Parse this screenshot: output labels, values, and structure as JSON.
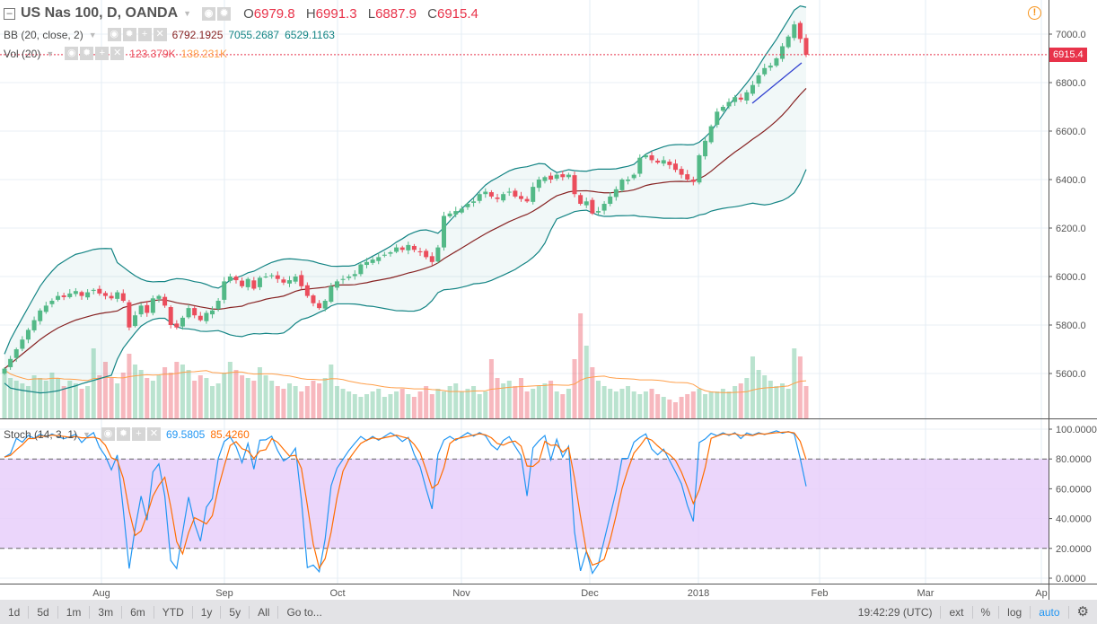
{
  "header": {
    "symbol": "US Nas 100, D, OANDA",
    "open_label": "O",
    "open": "6979.8",
    "high_label": "H",
    "high": "6991.3",
    "low_label": "L",
    "low": "6887.9",
    "close_label": "C",
    "close": "6915.4"
  },
  "bb": {
    "label": "BB (20, close, 2)",
    "basis": "6792.1925",
    "upper": "7055.2687",
    "lower": "6529.1163"
  },
  "vol": {
    "label": "Vol (20)",
    "value": "123.379K",
    "ma": "138.231K"
  },
  "stoch": {
    "label": "Stoch (14, 3, 1)",
    "k": "69.5805",
    "d": "85.4260"
  },
  "last_price": "6915.4",
  "colors": {
    "up": "#53b987",
    "down": "#eb4d5c",
    "bb": "#138484",
    "basis": "#872323",
    "k": "#2196f3",
    "d": "#ff6d00",
    "stoch_fill": "#e8cffa"
  },
  "chart_data": {
    "type": "candlestick",
    "price_ticks": [
      "5600.0",
      "5800.0",
      "6000.0",
      "6200.0",
      "6400.0",
      "6600.0",
      "6800.0",
      "7000.0"
    ],
    "price_tick_values": [
      5600,
      5800,
      6000,
      6200,
      6400,
      6600,
      6800,
      7000
    ],
    "stoch_ticks": [
      "0.0000",
      "20.0000",
      "40.0000",
      "60.0000",
      "80.0000",
      "100.0000"
    ],
    "time_labels": [
      "Aug",
      "Sep",
      "Oct",
      "Nov",
      "Dec",
      "2018",
      "Feb",
      "Mar",
      "Ap"
    ],
    "closes": [
      5620,
      5660,
      5700,
      5740,
      5780,
      5820,
      5860,
      5880,
      5900,
      5920,
      5915,
      5930,
      5940,
      5920,
      5935,
      5945,
      5930,
      5920,
      5910,
      5935,
      5900,
      5790,
      5840,
      5880,
      5850,
      5910,
      5920,
      5880,
      5800,
      5790,
      5830,
      5870,
      5840,
      5820,
      5850,
      5860,
      5900,
      5980,
      6000,
      5985,
      5960,
      5990,
      5950,
      5995,
      6000,
      6005,
      5990,
      5975,
      5985,
      6000,
      5960,
      5920,
      5890,
      5870,
      5900,
      5960,
      5980,
      5990,
      6000,
      6010,
      6050,
      6060,
      6070,
      6080,
      6090,
      6100,
      6120,
      6110,
      6130,
      6110,
      6100,
      6080,
      6060,
      6120,
      6250,
      6260,
      6270,
      6280,
      6300,
      6310,
      6340,
      6350,
      6330,
      6320,
      6340,
      6350,
      6330,
      6320,
      6310,
      6370,
      6400,
      6410,
      6400,
      6420,
      6410,
      6420,
      6340,
      6300,
      6310,
      6260,
      6270,
      6300,
      6330,
      6360,
      6400,
      6400,
      6420,
      6490,
      6500,
      6480,
      6470,
      6480,
      6460,
      6440,
      6420,
      6400,
      6390,
      6500,
      6560,
      6620,
      6680,
      6700,
      6720,
      6740,
      6730,
      6760,
      6790,
      6830,
      6860,
      6870,
      6900,
      6950,
      6990,
      7040,
      6980,
      6915
    ],
    "volumes_k": [
      180,
      150,
      140,
      130,
      120,
      160,
      150,
      140,
      170,
      150,
      120,
      140,
      130,
      110,
      120,
      260,
      160,
      210,
      150,
      130,
      170,
      240,
      200,
      180,
      150,
      140,
      160,
      190,
      170,
      210,
      200,
      180,
      140,
      160,
      150,
      120,
      130,
      170,
      210,
      180,
      160,
      150,
      140,
      190,
      160,
      140,
      120,
      110,
      130,
      120,
      100,
      120,
      140,
      130,
      150,
      200,
      120,
      110,
      100,
      90,
      80,
      90,
      100,
      110,
      80,
      90,
      100,
      110,
      90,
      80,
      100,
      120,
      90,
      110,
      100,
      120,
      130,
      100,
      110,
      120,
      90,
      100,
      220,
      150,
      130,
      140,
      120,
      150,
      100,
      110,
      120,
      130,
      140,
      100,
      90,
      110,
      220,
      390,
      270,
      190,
      140,
      120,
      110,
      100,
      110,
      120,
      100,
      90,
      100,
      110,
      90,
      80,
      70,
      60,
      80,
      90,
      100,
      110,
      90,
      100,
      100,
      110,
      100,
      120,
      130,
      150,
      230,
      180,
      160,
      140,
      120,
      130,
      110,
      260,
      230,
      120
    ]
  },
  "toolbar": {
    "ranges": [
      "1d",
      "5d",
      "1m",
      "3m",
      "6m",
      "YTD",
      "1y",
      "5y",
      "All",
      "Go to..."
    ],
    "time": "19:42:29 (UTC)",
    "opts": [
      "ext",
      "%",
      "log",
      "auto"
    ]
  }
}
